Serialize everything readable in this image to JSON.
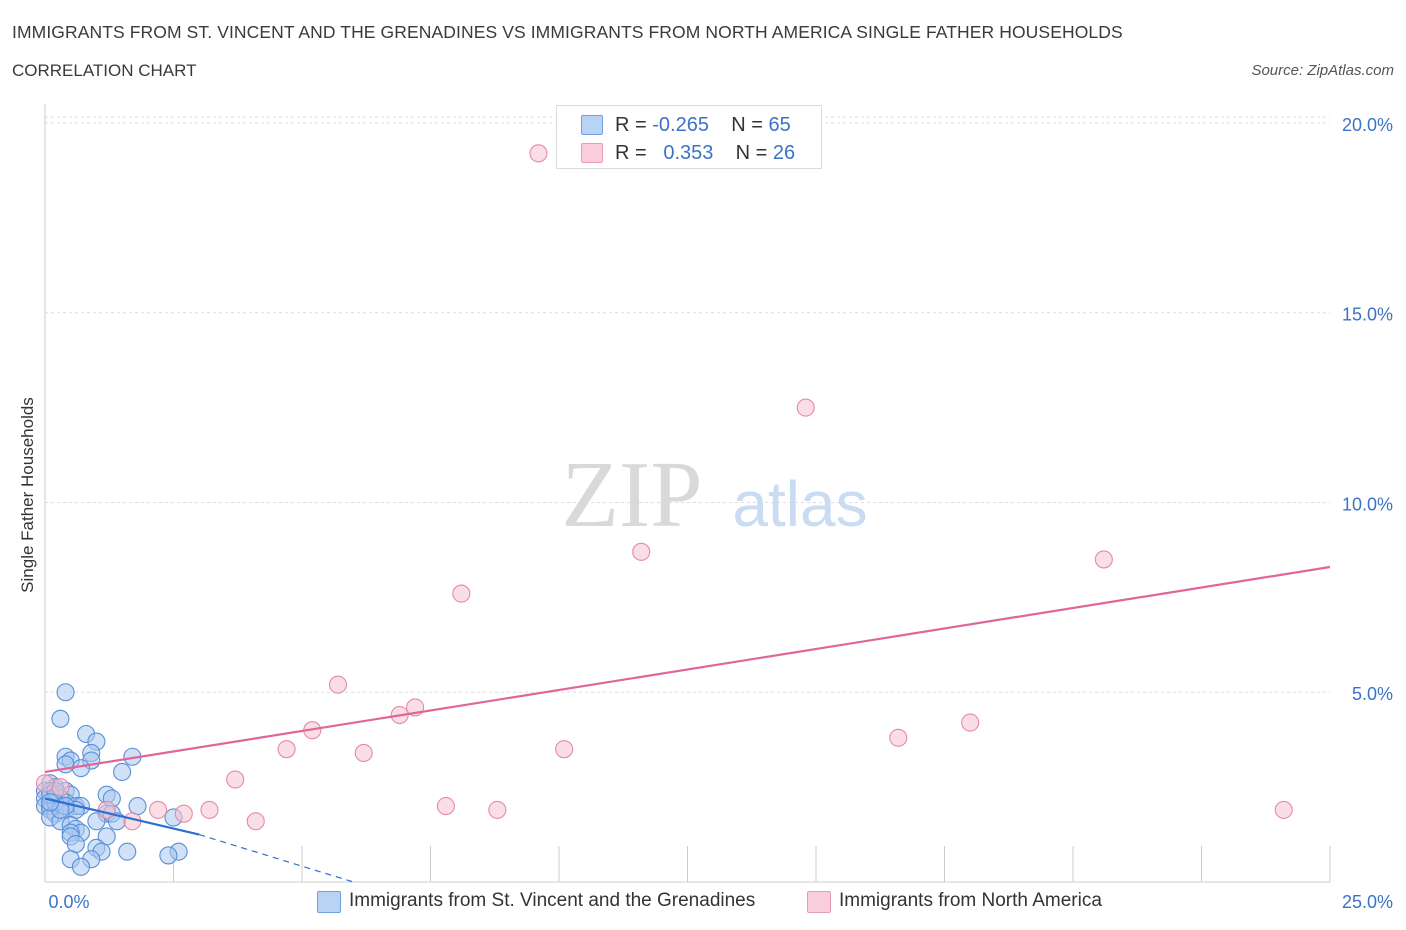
{
  "header": {
    "title": "IMMIGRANTS FROM ST. VINCENT AND THE GRENADINES VS IMMIGRANTS FROM NORTH AMERICA SINGLE FATHER HOUSEHOLDS",
    "subtitle": "CORRELATION CHART",
    "source": "Source: ZipAtlas.com"
  },
  "watermark": {
    "zip": "ZIP",
    "atlas": "atlas"
  },
  "legend": {
    "rows": [
      {
        "r_label": "R =",
        "r_value": "-0.265",
        "n_label": "N =",
        "n_value": "65"
      },
      {
        "r_label": "R =",
        "r_value": "0.353",
        "n_label": "N =",
        "n_value": "26"
      }
    ]
  },
  "colors": {
    "blue_fill": "#aac8f0",
    "blue_stroke": "#5a8fd6",
    "blue_line": "#2e6fd0",
    "pink_fill": "#f6c3d2",
    "pink_stroke": "#e48aa8",
    "pink_line": "#e0659a",
    "axis_label": "#3b73c6",
    "grid": "#dddddd"
  },
  "chart_data": {
    "type": "scatter",
    "title": "IMMIGRANTS FROM ST. VINCENT AND THE GRENADINES VS IMMIGRANTS FROM NORTH AMERICA SINGLE FATHER HOUSEHOLDS",
    "xlabel": "",
    "ylabel": "Single Father Households",
    "xlim": [
      0,
      25
    ],
    "ylim": [
      0,
      20.5
    ],
    "x_tick_labels": [
      "0.0%",
      "25.0%"
    ],
    "y_ticks": [
      5,
      10,
      15,
      20
    ],
    "y_tick_labels": [
      "5.0%",
      "10.0%",
      "15.0%",
      "20.0%"
    ],
    "grid": true,
    "legend_position": "top-center and bottom",
    "series": [
      {
        "name": "Immigrants from St. Vincent and the Grenadines",
        "color": "blue",
        "points": [
          [
            0.4,
            5.0
          ],
          [
            0.3,
            4.3
          ],
          [
            0.8,
            3.9
          ],
          [
            1.0,
            3.7
          ],
          [
            0.4,
            3.3
          ],
          [
            0.9,
            3.4
          ],
          [
            1.7,
            3.3
          ],
          [
            0.5,
            3.2
          ],
          [
            0.9,
            3.2
          ],
          [
            0.4,
            3.1
          ],
          [
            0.7,
            3.0
          ],
          [
            1.5,
            2.9
          ],
          [
            0.1,
            2.6
          ],
          [
            0.2,
            2.5
          ],
          [
            0.0,
            2.4
          ],
          [
            0.1,
            2.4
          ],
          [
            0.4,
            2.4
          ],
          [
            0.2,
            2.3
          ],
          [
            0.5,
            2.3
          ],
          [
            1.2,
            2.3
          ],
          [
            0.0,
            2.2
          ],
          [
            0.2,
            2.2
          ],
          [
            0.3,
            2.2
          ],
          [
            0.1,
            2.1
          ],
          [
            0.4,
            2.1
          ],
          [
            1.3,
            2.2
          ],
          [
            0.0,
            2.0
          ],
          [
            0.1,
            2.0
          ],
          [
            0.3,
            2.0
          ],
          [
            0.6,
            2.0
          ],
          [
            0.7,
            2.0
          ],
          [
            1.8,
            2.0
          ],
          [
            0.1,
            1.9
          ],
          [
            0.4,
            1.9
          ],
          [
            0.6,
            1.9
          ],
          [
            1.2,
            1.8
          ],
          [
            1.3,
            1.8
          ],
          [
            0.2,
            1.8
          ],
          [
            0.1,
            1.7
          ],
          [
            2.5,
            1.7
          ],
          [
            0.3,
            1.6
          ],
          [
            1.0,
            1.6
          ],
          [
            1.4,
            1.6
          ],
          [
            0.5,
            1.5
          ],
          [
            0.6,
            1.4
          ],
          [
            0.7,
            1.3
          ],
          [
            0.5,
            1.3
          ],
          [
            1.2,
            1.2
          ],
          [
            0.5,
            1.2
          ],
          [
            0.6,
            1.0
          ],
          [
            1.0,
            0.9
          ],
          [
            1.6,
            0.8
          ],
          [
            1.1,
            0.8
          ],
          [
            2.6,
            0.8
          ],
          [
            2.4,
            0.7
          ],
          [
            0.5,
            0.6
          ],
          [
            0.9,
            0.6
          ],
          [
            0.7,
            0.4
          ],
          [
            0.3,
            2.2
          ],
          [
            0.2,
            2.1
          ],
          [
            0.1,
            2.3
          ],
          [
            0.4,
            2.0
          ],
          [
            0.3,
            1.9
          ],
          [
            0.2,
            2.4
          ],
          [
            0.1,
            2.1
          ]
        ]
      },
      {
        "name": "Immigrants from North America",
        "color": "pink",
        "points": [
          [
            9.6,
            19.2
          ],
          [
            14.8,
            12.5
          ],
          [
            11.6,
            8.7
          ],
          [
            20.6,
            8.5
          ],
          [
            8.1,
            7.6
          ],
          [
            5.7,
            5.2
          ],
          [
            7.2,
            4.6
          ],
          [
            6.9,
            4.4
          ],
          [
            18.0,
            4.2
          ],
          [
            5.2,
            4.0
          ],
          [
            16.6,
            3.8
          ],
          [
            4.7,
            3.5
          ],
          [
            10.1,
            3.5
          ],
          [
            6.2,
            3.4
          ],
          [
            3.7,
            2.7
          ],
          [
            0.3,
            2.5
          ],
          [
            0.0,
            2.6
          ],
          [
            7.8,
            2.0
          ],
          [
            2.2,
            1.9
          ],
          [
            3.2,
            1.9
          ],
          [
            2.7,
            1.8
          ],
          [
            1.2,
            1.9
          ],
          [
            8.8,
            1.9
          ],
          [
            24.1,
            1.9
          ],
          [
            4.1,
            1.6
          ],
          [
            1.7,
            1.6
          ]
        ]
      }
    ],
    "trend_lines": [
      {
        "series": "Immigrants from St. Vincent and the Grenadines",
        "x0": 0.0,
        "y0": 2.2,
        "x1": 3.0,
        "y1": 1.25,
        "dashed_to_x": 6.0,
        "dashed_to_y": 0.0
      },
      {
        "series": "Immigrants from North America",
        "x0": 0.0,
        "y0": 2.9,
        "x1": 25.0,
        "y1": 8.3
      }
    ]
  }
}
